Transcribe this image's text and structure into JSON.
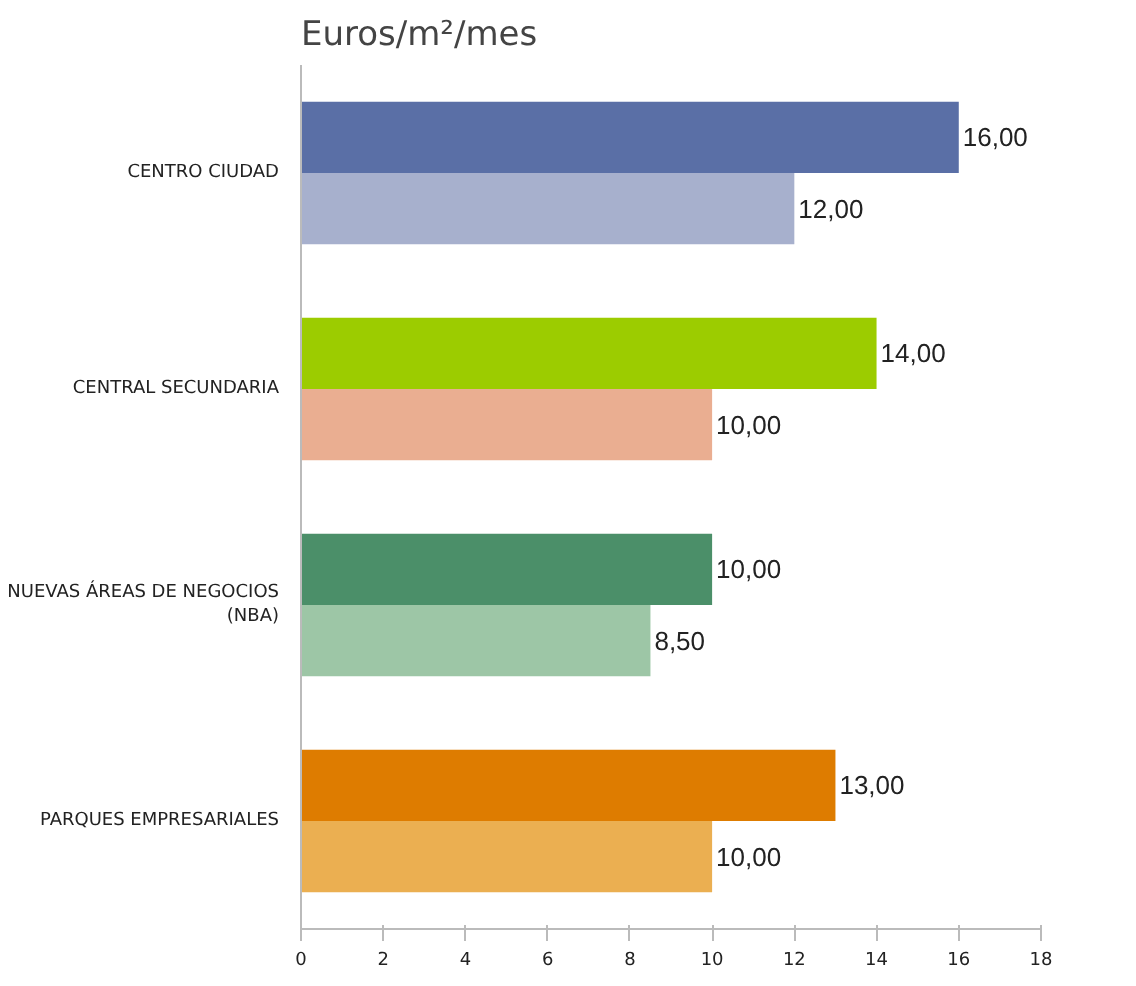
{
  "chart_data": {
    "type": "bar",
    "orientation": "horizontal",
    "title": "Euros/m²/mes",
    "categories": [
      "CENTRO CIUDAD",
      "CENTRAL SECUNDARIA",
      "NUEVAS ÁREAS DE NEGOCIOS (NBA)",
      "PARQUES EMPRESARIALES"
    ],
    "series": [
      {
        "colors": [
          "#5a6fa6",
          "#9ccc00",
          "#4b8f69",
          "#de7c00"
        ],
        "values": [
          16,
          14,
          10,
          13
        ],
        "value_labels": [
          "16,00",
          "14,00",
          "10,00",
          "13,00"
        ]
      },
      {
        "colors": [
          "#a7b0cd",
          "#eaae91",
          "#9dc6a6",
          "#ebaf51"
        ],
        "values": [
          12,
          10,
          8.5,
          10
        ],
        "value_labels": [
          "12,00",
          "10,00",
          "8,50",
          "10,00"
        ]
      }
    ],
    "xlim": [
      0,
      18
    ],
    "xticks": [
      0,
      2,
      4,
      6,
      8,
      10,
      12,
      14,
      16,
      18
    ],
    "grid": false
  }
}
